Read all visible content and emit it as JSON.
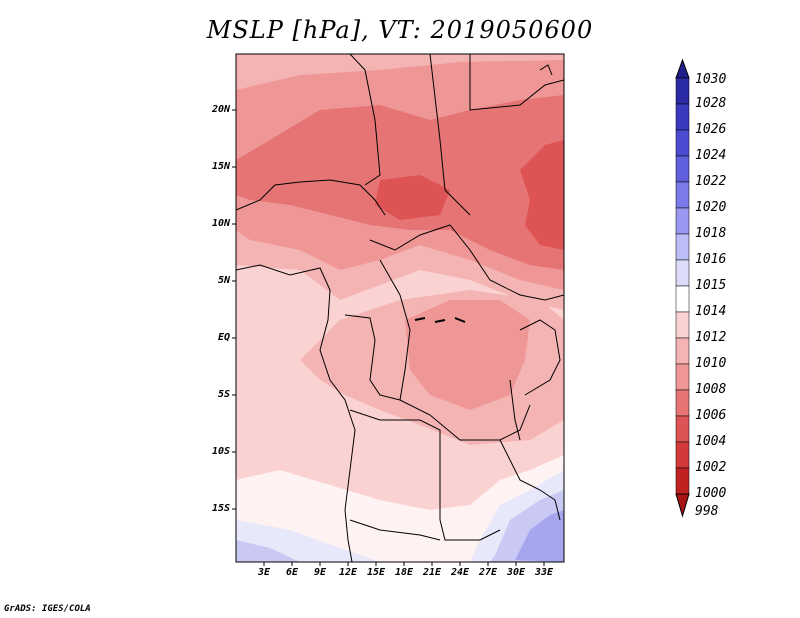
{
  "title": "MSLP [hPa], VT: 2019050600",
  "footer": "GrADS: IGES/COLA",
  "lat_labels": [
    "20N",
    "15N",
    "10N",
    "5N",
    "EQ",
    "5S",
    "10S",
    "15S"
  ],
  "lon_labels": [
    "3E",
    "6E",
    "9E",
    "12E",
    "15E",
    "18E",
    "21E",
    "24E",
    "27E",
    "30E",
    "33E"
  ],
  "colorbar": {
    "labels": [
      "1030",
      "1028",
      "1026",
      "1024",
      "1022",
      "1020",
      "1018",
      "1016",
      "1015",
      "1014",
      "1012",
      "1010",
      "1008",
      "1006",
      "1004",
      "1002",
      "1000",
      "998"
    ],
    "colors": [
      "#1e1e8c",
      "#2a2aa5",
      "#3a3abf",
      "#4b4bd2",
      "#6060de",
      "#7a7ae8",
      "#9898f0",
      "#bcbcf6",
      "#dcdcfa",
      "#ffffff",
      "#fbd2d2",
      "#f5b4b4",
      "#ef9696",
      "#e77474",
      "#de5454",
      "#d23a3a",
      "#c02222",
      "#a81414"
    ]
  },
  "field_colors": {
    "p1012": "#fbd2d2",
    "p1010": "#f5b4b4",
    "p1008": "#ef9696",
    "p1006": "#e77474",
    "p1004": "#de5454",
    "p1014": "#fff2f2",
    "p1015": "#e8e8fb",
    "p1016": "#c9c9f4",
    "p1018": "#a6a6ee"
  }
}
